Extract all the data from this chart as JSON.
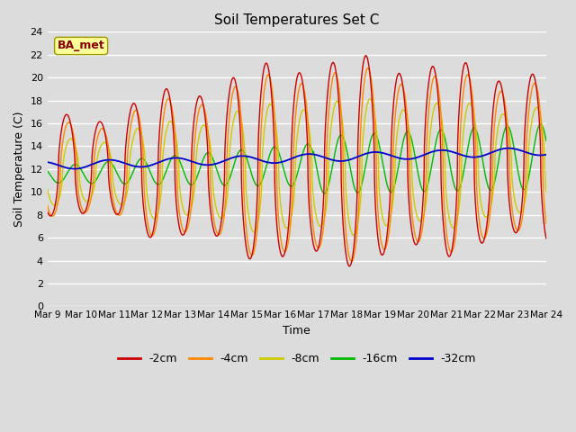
{
  "title": "Soil Temperatures Set C",
  "xlabel": "Time",
  "ylabel": "Soil Temperature (C)",
  "ylim": [
    0,
    24
  ],
  "yticks": [
    0,
    2,
    4,
    6,
    8,
    10,
    12,
    14,
    16,
    18,
    20,
    22,
    24
  ],
  "colors": {
    "-2cm": "#cc0000",
    "-4cm": "#ff8800",
    "-8cm": "#cccc00",
    "-16cm": "#00bb00",
    "-32cm": "#0000cc"
  },
  "legend_labels": [
    "-2cm",
    "-4cm",
    "-8cm",
    "-16cm",
    "-32cm"
  ],
  "xtick_labels": [
    "Mar 9",
    "Mar 10",
    "Mar 11",
    "Mar 12",
    "Mar 13",
    "Mar 14",
    "Mar 15",
    "Mar 16",
    "Mar 17",
    "Mar 18",
    "Mar 19",
    "Mar 20",
    "Mar 21",
    "Mar 22",
    "Mar 23",
    "Mar 24"
  ],
  "annotation_text": "BA_met",
  "annotation_color": "#8b0000",
  "annotation_bg": "#ffff99",
  "background_color": "#dcdcdc",
  "plot_bg": "#dcdcdc",
  "grid_color": "#ffffff",
  "figsize": [
    6.4,
    4.8
  ],
  "dpi": 100
}
